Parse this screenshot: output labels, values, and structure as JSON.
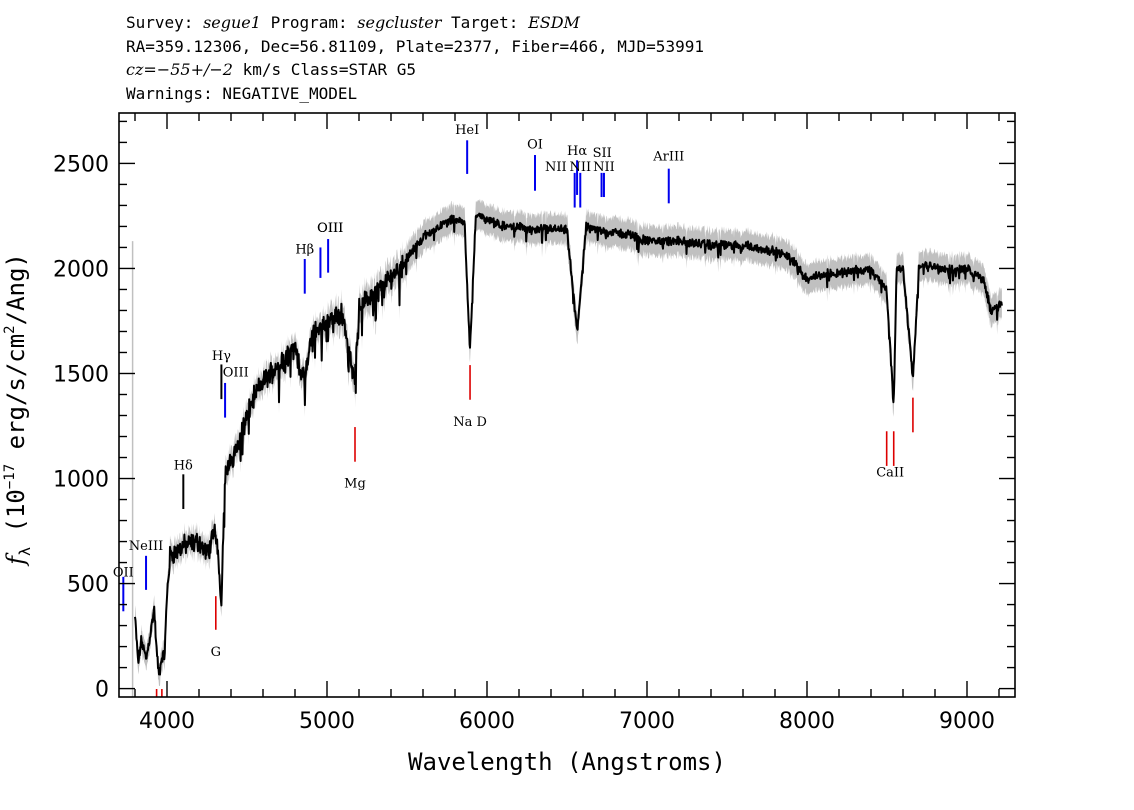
{
  "header": {
    "survey_label": "Survey:",
    "survey": "segue1",
    "program_label": "Program:",
    "program": "segcluster",
    "target_label": "Target:",
    "target": "ESDM",
    "line2": "RA=359.12306, Dec=56.81109, Plate=2377, Fiber=466, MJD=53991",
    "cz_label": "cz",
    "cz_value": "=−55+/−2",
    "cz_rest": " km/s Class=STAR G5",
    "warnings": "Warnings: NEGATIVE_MODEL"
  },
  "chart_data": {
    "type": "line",
    "title": "Survey: segue1 Program: segcluster Target: ESDM",
    "xlabel": "Wavelength (Angstroms)",
    "ylabel": "fλ (10⁻¹⁷ erg/s/cm²/Ang)",
    "ylabel_prefix": "f",
    "ylabel_sub": "λ",
    "ylabel_rest": " (10",
    "ylabel_exp": "−17",
    "ylabel_tail": " erg/s/cm",
    "ylabel_exp2": "2",
    "ylabel_end": "/Ang)",
    "xlim": [
      3700,
      9300
    ],
    "ylim": [
      -40,
      2740
    ],
    "xticks": [
      4000,
      5000,
      6000,
      7000,
      8000,
      9000
    ],
    "xtick_labels": [
      "4000",
      "5000",
      "6000",
      "7000",
      "8000",
      "9000"
    ],
    "yticks": [
      0,
      500,
      1000,
      1500,
      2000,
      2500
    ],
    "ytick_labels": [
      "0",
      "500",
      "1000",
      "1500",
      "2000",
      "2500"
    ],
    "spectrum_anchors": [
      [
        3800,
        340
      ],
      [
        3820,
        120
      ],
      [
        3840,
        230
      ],
      [
        3870,
        140
      ],
      [
        3900,
        280
      ],
      [
        3920,
        380
      ],
      [
        3935,
        180
      ],
      [
        3950,
        60
      ],
      [
        3968,
        150
      ],
      [
        3985,
        160
      ],
      [
        4000,
        450
      ],
      [
        4020,
        640
      ],
      [
        4060,
        650
      ],
      [
        4100,
        680
      ],
      [
        4150,
        690
      ],
      [
        4200,
        700
      ],
      [
        4250,
        640
      ],
      [
        4290,
        720
      ],
      [
        4300,
        760
      ],
      [
        4320,
        630
      ],
      [
        4340,
        420
      ],
      [
        4360,
        1000
      ],
      [
        4400,
        1080
      ],
      [
        4450,
        1180
      ],
      [
        4500,
        1300
      ],
      [
        4550,
        1400
      ],
      [
        4600,
        1460
      ],
      [
        4700,
        1550
      ],
      [
        4800,
        1620
      ],
      [
        4861,
        1450
      ],
      [
        4900,
        1680
      ],
      [
        5000,
        1750
      ],
      [
        5100,
        1780
      ],
      [
        5170,
        1450
      ],
      [
        5200,
        1820
      ],
      [
        5300,
        1880
      ],
      [
        5400,
        1960
      ],
      [
        5500,
        2050
      ],
      [
        5600,
        2150
      ],
      [
        5700,
        2200
      ],
      [
        5800,
        2240
      ],
      [
        5860,
        2220
      ],
      [
        5893,
        1600
      ],
      [
        5930,
        2260
      ],
      [
        6000,
        2230
      ],
      [
        6100,
        2200
      ],
      [
        6200,
        2200
      ],
      [
        6300,
        2180
      ],
      [
        6400,
        2190
      ],
      [
        6500,
        2180
      ],
      [
        6563,
        1700
      ],
      [
        6620,
        2200
      ],
      [
        6700,
        2180
      ],
      [
        6800,
        2170
      ],
      [
        6900,
        2160
      ],
      [
        7000,
        2130
      ],
      [
        7200,
        2130
      ],
      [
        7400,
        2110
      ],
      [
        7600,
        2110
      ],
      [
        7800,
        2080
      ],
      [
        7900,
        2050
      ],
      [
        8000,
        1950
      ],
      [
        8100,
        1970
      ],
      [
        8200,
        1980
      ],
      [
        8300,
        1990
      ],
      [
        8400,
        1990
      ],
      [
        8498,
        1900
      ],
      [
        8542,
        1350
      ],
      [
        8560,
        2000
      ],
      [
        8600,
        2000
      ],
      [
        8662,
        1480
      ],
      [
        8700,
        2010
      ],
      [
        8800,
        2010
      ],
      [
        8900,
        1990
      ],
      [
        9000,
        2000
      ],
      [
        9100,
        1950
      ],
      [
        9150,
        1800
      ],
      [
        9200,
        1820
      ],
      [
        9220,
        1830
      ]
    ],
    "emission_lines": [
      {
        "label": "OII",
        "x": 3727,
        "y1": 368,
        "y2": 532,
        "label_y": 534,
        "label_x": 3727
      },
      {
        "label": "NeIII",
        "x": 3869,
        "y1": 470,
        "y2": 632,
        "label_y": 660,
        "label_x": 3869
      },
      {
        "label": "Hδ",
        "x": 4102,
        "y1": 855,
        "y2": 1020,
        "label_y": 1042,
        "label_x": 4102
      },
      {
        "label": "Hγ",
        "x": 4340,
        "y1": 1378,
        "y2": 1543,
        "label_y": 1565,
        "label_x": 4340
      },
      {
        "label": "OIII",
        "x": 4363,
        "y1": 1290,
        "y2": 1455,
        "label_y": 1486,
        "label_x": 4430
      },
      {
        "label": "Hβ",
        "x": 4861,
        "y1": 1880,
        "y2": 2045,
        "label_y": 2072,
        "label_x": 4861
      },
      {
        "label": "OIII",
        "x": 4959,
        "y1": 1955,
        "y2": 2100,
        "label_y": 2173,
        "label_x": 5020
      },
      {
        "label": "OIII",
        "x": 5007,
        "y1": 1980,
        "y2": 2140,
        "label_y": 2173,
        "label_x": 5020
      },
      {
        "label": "HeI",
        "x": 5876,
        "y1": 2450,
        "y2": 2610,
        "label_y": 2640,
        "label_x": 5876
      },
      {
        "label": "OI",
        "x": 6300,
        "y1": 2370,
        "y2": 2540,
        "label_y": 2570,
        "label_x": 6300
      },
      {
        "label": "NII",
        "x": 6548,
        "y1": 2290,
        "y2": 2455,
        "label_y": 2465,
        "label_x": 6430
      },
      {
        "label": "Hα",
        "x": 6563,
        "y1": 2350,
        "y2": 2515,
        "label_y": 2540,
        "label_x": 6563
      },
      {
        "label": "NII",
        "x": 6583,
        "y1": 2290,
        "y2": 2455,
        "label_y": 2465,
        "label_x": 6583
      },
      {
        "label": "SII",
        "x": 6716,
        "y1": 2340,
        "y2": 2455,
        "label_y": 2530,
        "label_x": 6720
      },
      {
        "label": "NII",
        "x": 6731,
        "y1": 2340,
        "y2": 2455,
        "label_y": 2465,
        "label_x": 6731
      },
      {
        "label": "ArIII",
        "x": 7136,
        "y1": 2310,
        "y2": 2475,
        "label_y": 2515,
        "label_x": 7136
      }
    ],
    "absorption_lines": [
      {
        "label": "G",
        "x": 4305,
        "y1": 280,
        "y2": 440,
        "label_y": 155
      },
      {
        "label": "Mg",
        "x": 5175,
        "y1": 1080,
        "y2": 1245,
        "label_y": 958
      },
      {
        "label": "Na D",
        "x": 5894,
        "y1": 1375,
        "y2": 1540,
        "label_y": 1250
      },
      {
        "label": "CaII",
        "x": 8498,
        "y1": 1060,
        "y2": 1225,
        "label_y": 1010
      },
      {
        "label": "CaII",
        "x": 8542,
        "y1": 1060,
        "y2": 1225,
        "label_y": 1010
      },
      {
        "label": "CaII",
        "x": 8662,
        "y1": 1220,
        "y2": 1385,
        "label_y": 1010
      }
    ]
  },
  "colors": {
    "spectrum": "#000000",
    "error_band": "#c0c0c0",
    "emission": "#0000ee",
    "absorption": "#dd0000"
  }
}
